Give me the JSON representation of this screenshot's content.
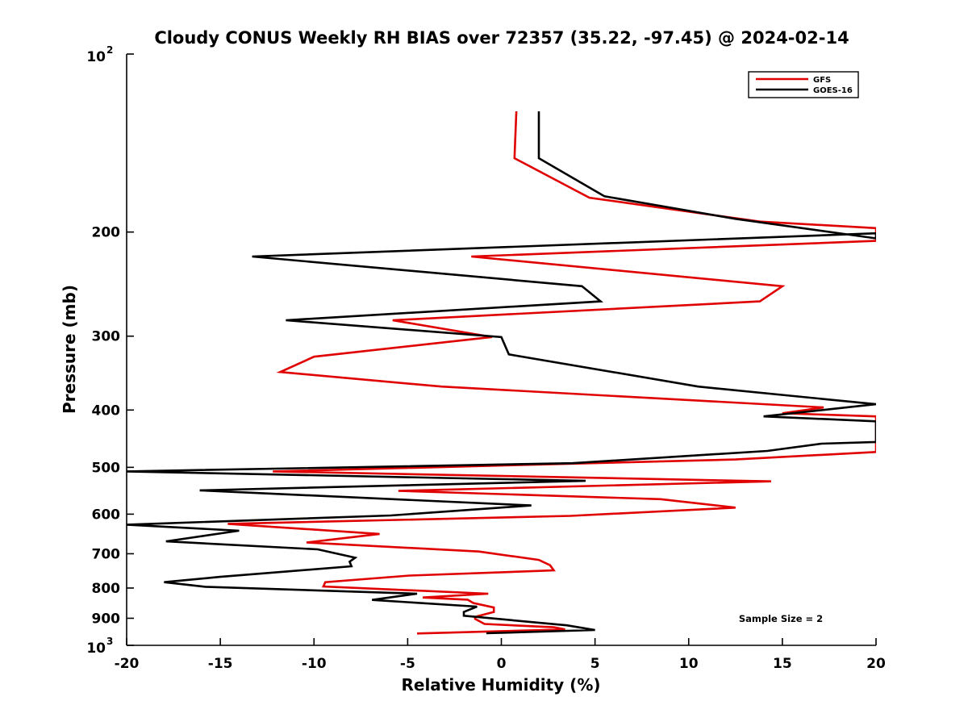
{
  "chart_data": {
    "type": "line",
    "title": "Cloudy CONUS Weekly RH BIAS over 72357 (35.22, -97.45) @ 2024-02-14",
    "xlabel": "Relative Humidity (%)",
    "ylabel": "Pressure (mb)",
    "xlim": [
      -20,
      20
    ],
    "ylim": [
      100,
      1000
    ],
    "y_scale": "log",
    "y_reversed": true,
    "grid": false,
    "legend_position": "top-right",
    "x_ticks": [
      "-20",
      "-15",
      "-10",
      "-5",
      "0",
      "5",
      "10",
      "15",
      "20"
    ],
    "x_tick_values": [
      -20,
      -15,
      -10,
      -5,
      0,
      5,
      10,
      15,
      20
    ],
    "y_ticks": [
      {
        "value": 100,
        "base": "10",
        "exp": "2"
      },
      {
        "value": 200,
        "label": "200"
      },
      {
        "value": 300,
        "label": "300"
      },
      {
        "value": 400,
        "label": "400"
      },
      {
        "value": 500,
        "label": "500"
      },
      {
        "value": 600,
        "label": "600"
      },
      {
        "value": 700,
        "label": "700"
      },
      {
        "value": 800,
        "label": "800"
      },
      {
        "value": 900,
        "label": "900"
      },
      {
        "value": 1000,
        "base": "10",
        "exp": "3"
      }
    ],
    "annotation": "Sample Size = 2",
    "series": [
      {
        "name": "GFS",
        "color": "#e00000",
        "points": [
          [
            0.8,
            125
          ],
          [
            0.7,
            150
          ],
          [
            4.7,
            175
          ],
          [
            13.8,
            192
          ],
          [
            20,
            197
          ],
          [
            20,
            207
          ],
          [
            -1.6,
            220
          ],
          [
            15,
            247
          ],
          [
            13.8,
            262
          ],
          [
            -5.8,
            282
          ],
          [
            -0.5,
            301
          ],
          [
            -10,
            325
          ],
          [
            -11.8,
            345
          ],
          [
            -3.2,
            365
          ],
          [
            17.2,
            396
          ],
          [
            15,
            405
          ],
          [
            20,
            410
          ],
          [
            20,
            471
          ],
          [
            12.5,
            485
          ],
          [
            -12.2,
            508
          ],
          [
            14.4,
            528
          ],
          [
            -5.5,
            548
          ],
          [
            8.5,
            566
          ],
          [
            12.5,
            585
          ],
          [
            3.7,
            604
          ],
          [
            -14.6,
            623
          ],
          [
            -6.5,
            648
          ],
          [
            -10.4,
            670
          ],
          [
            -1.2,
            694
          ],
          [
            2,
            717
          ],
          [
            2.6,
            732
          ],
          [
            2.8,
            747
          ],
          [
            -4.9,
            762
          ],
          [
            -9.4,
            782
          ],
          [
            -9.5,
            795
          ],
          [
            -0.7,
            818
          ],
          [
            -4.2,
            830
          ],
          [
            -1.8,
            837
          ],
          [
            -1.5,
            848
          ],
          [
            -0.4,
            863
          ],
          [
            -0.4,
            878
          ],
          [
            -1.4,
            895
          ],
          [
            -1.4,
            902
          ],
          [
            -0.9,
            920
          ],
          [
            2.8,
            932
          ],
          [
            3.4,
            940
          ],
          [
            -4.5,
            955
          ]
        ]
      },
      {
        "name": "GOES-16",
        "color": "#000000",
        "points": [
          [
            2,
            125
          ],
          [
            2,
            150
          ],
          [
            5.5,
            174
          ],
          [
            12.5,
            190
          ],
          [
            20,
            205
          ],
          [
            20,
            201
          ],
          [
            -13.3,
            220
          ],
          [
            4.3,
            247
          ],
          [
            5.3,
            262
          ],
          [
            -11.5,
            282
          ],
          [
            0,
            301
          ],
          [
            0.4,
            322
          ],
          [
            10.5,
            365
          ],
          [
            20,
            391
          ],
          [
            14,
            410
          ],
          [
            20,
            418
          ],
          [
            20,
            453
          ],
          [
            17.1,
            456
          ],
          [
            14.2,
            469
          ],
          [
            3.8,
            492
          ],
          [
            -20,
            508
          ],
          [
            4.5,
            527
          ],
          [
            -16.1,
            547
          ],
          [
            1.6,
            580
          ],
          [
            -5.9,
            603
          ],
          [
            -20,
            625
          ],
          [
            -14,
            640
          ],
          [
            -17.9,
            667
          ],
          [
            -9.8,
            688
          ],
          [
            -7.8,
            711
          ],
          [
            -8.1,
            722
          ],
          [
            -8,
            735
          ],
          [
            -15,
            766
          ],
          [
            -18,
            782
          ],
          [
            -15.8,
            796
          ],
          [
            -4.5,
            818
          ],
          [
            -6.9,
            838
          ],
          [
            -1.3,
            860
          ],
          [
            -2,
            878
          ],
          [
            -2,
            891
          ],
          [
            3.5,
            925
          ],
          [
            5,
            942
          ],
          [
            -0.8,
            954
          ]
        ]
      }
    ]
  }
}
